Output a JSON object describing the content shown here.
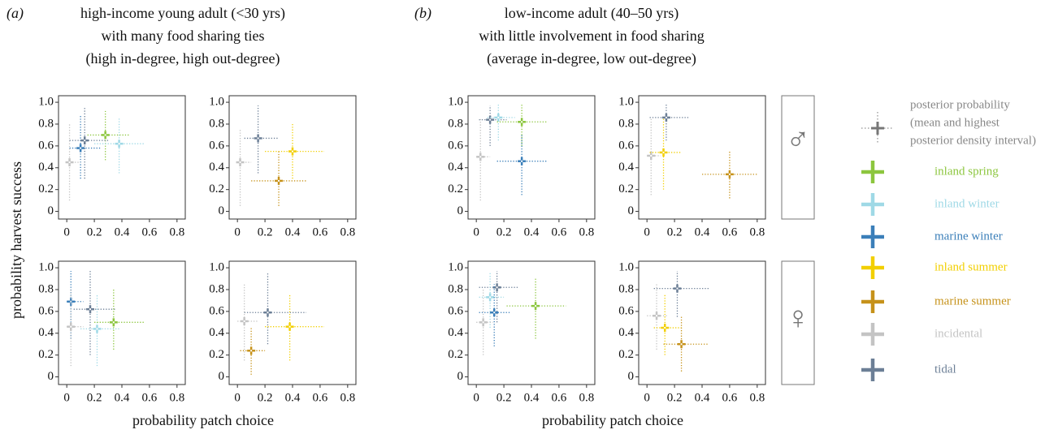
{
  "figure": {
    "panels": [
      {
        "label": "(a)",
        "title": [
          "high-income young adult (<30 yrs)",
          "with many food sharing ties",
          "(high in-degree, high out-degree)"
        ],
        "x_label": "probability patch choice"
      },
      {
        "label": "(b)",
        "title": [
          "low-income adult (40–50 yrs)",
          "with little involvement in food sharing",
          "(average in-degree, low out-degree)"
        ],
        "x_label": "probability patch choice"
      }
    ],
    "y_label": "probability harvest success",
    "sex_labels": [
      "♂",
      "♀"
    ],
    "legend": {
      "title": [
        "posterior probability",
        "(mean and highest",
        "posterior density interval)"
      ],
      "entries": [
        {
          "name": "inland spring",
          "color": "#8cc63e"
        },
        {
          "name": "inland winter",
          "color": "#9fd9e6"
        },
        {
          "name": "marine winter",
          "color": "#3b7fb9"
        },
        {
          "name": "inland summer",
          "color": "#f2cf00"
        },
        {
          "name": "marine summer",
          "color": "#c6921a"
        },
        {
          "name": "incidental",
          "color": "#c4c4c4"
        },
        {
          "name": "tidal",
          "color": "#6c7f96"
        }
      ]
    }
  },
  "chart_data": [
    {
      "type": "scatter",
      "xlim": [
        -0.06,
        0.86
      ],
      "ylim": [
        -0.07,
        1.06
      ],
      "xticks": [
        0,
        0.2,
        0.4,
        0.6,
        0.8
      ],
      "yticks": [
        0,
        0.2,
        0.4,
        0.6,
        0.8,
        {
          "value": 1,
          "label": "1.0"
        }
      ],
      "series": [
        {
          "color": "#8cc63e",
          "x": [
            0.28
          ],
          "values": [
            0.7
          ],
          "x_interval": [
            [
              0.15,
              0.45
            ]
          ],
          "y_interval": [
            [
              0.47,
              0.92
            ]
          ]
        },
        {
          "color": "#9fd9e6",
          "x": [
            0.38
          ],
          "values": [
            0.62
          ],
          "x_interval": [
            [
              0.2,
              0.56
            ]
          ],
          "y_interval": [
            [
              0.35,
              0.85
            ]
          ]
        },
        {
          "color": "#3b7fb9",
          "x": [
            0.1
          ],
          "values": [
            0.58
          ],
          "x_interval": [
            [
              0.02,
              0.25
            ]
          ],
          "y_interval": [
            [
              0.3,
              0.88
            ]
          ]
        },
        {
          "color": "#c4c4c4",
          "x": [
            0.02
          ],
          "values": [
            0.45
          ],
          "x_interval": [
            [
              0,
              0.1
            ]
          ],
          "y_interval": [
            [
              0.1,
              0.8
            ]
          ]
        },
        {
          "color": "#6c7f96",
          "x": [
            0.13
          ],
          "values": [
            0.65
          ],
          "x_interval": [
            [
              0.02,
              0.3
            ]
          ],
          "y_interval": [
            [
              0.3,
              0.95
            ]
          ]
        }
      ]
    },
    {
      "type": "scatter",
      "xlim": [
        -0.06,
        0.86
      ],
      "ylim": [
        -0.07,
        1.06
      ],
      "xticks": [
        0,
        0.2,
        0.4,
        0.6,
        0.8
      ],
      "yticks": [
        0,
        0.2,
        0.4,
        0.6,
        0.8,
        {
          "value": 1,
          "label": "1.0"
        }
      ],
      "series": [
        {
          "color": "#6c7f96",
          "x": [
            0.15
          ],
          "values": [
            0.67
          ],
          "x_interval": [
            [
              0.05,
              0.3
            ]
          ],
          "y_interval": [
            [
              0.35,
              0.97
            ]
          ]
        },
        {
          "color": "#c4c4c4",
          "x": [
            0.02
          ],
          "values": [
            0.45
          ],
          "x_interval": [
            [
              0,
              0.1
            ]
          ],
          "y_interval": [
            [
              0.05,
              0.75
            ]
          ]
        },
        {
          "color": "#f2cf00",
          "x": [
            0.4
          ],
          "values": [
            0.55
          ],
          "x_interval": [
            [
              0.2,
              0.63
            ]
          ],
          "y_interval": [
            [
              0.3,
              0.8
            ]
          ]
        },
        {
          "color": "#c6921a",
          "x": [
            0.3
          ],
          "values": [
            0.28
          ],
          "x_interval": [
            [
              0.1,
              0.5
            ]
          ],
          "y_interval": [
            [
              0.05,
              0.55
            ]
          ]
        }
      ]
    },
    {
      "type": "scatter",
      "xlim": [
        -0.06,
        0.86
      ],
      "ylim": [
        -0.07,
        1.06
      ],
      "xticks": [
        0,
        0.2,
        0.4,
        0.6,
        0.8
      ],
      "yticks": [
        0,
        0.2,
        0.4,
        0.6,
        0.8,
        {
          "value": 1,
          "label": "1.0"
        }
      ],
      "series": [
        {
          "color": "#3b7fb9",
          "x": [
            0.03
          ],
          "values": [
            0.69
          ],
          "x_interval": [
            [
              0,
              0.12
            ]
          ],
          "y_interval": [
            [
              0.35,
              0.97
            ]
          ]
        },
        {
          "color": "#6c7f96",
          "x": [
            0.17
          ],
          "values": [
            0.62
          ],
          "x_interval": [
            [
              0.05,
              0.35
            ]
          ],
          "y_interval": [
            [
              0.2,
              0.97
            ]
          ]
        },
        {
          "color": "#c4c4c4",
          "x": [
            0.03
          ],
          "values": [
            0.46
          ],
          "x_interval": [
            [
              0,
              0.12
            ]
          ],
          "y_interval": [
            [
              0.1,
              0.8
            ]
          ]
        },
        {
          "color": "#9fd9e6",
          "x": [
            0.22
          ],
          "values": [
            0.44
          ],
          "x_interval": [
            [
              0.1,
              0.38
            ]
          ],
          "y_interval": [
            [
              0.1,
              0.75
            ]
          ]
        },
        {
          "color": "#8cc63e",
          "x": [
            0.34
          ],
          "values": [
            0.5
          ],
          "x_interval": [
            [
              0.2,
              0.56
            ]
          ],
          "y_interval": [
            [
              0.25,
              0.8
            ]
          ]
        }
      ]
    },
    {
      "type": "scatter",
      "xlim": [
        -0.06,
        0.86
      ],
      "ylim": [
        -0.07,
        1.06
      ],
      "xticks": [
        0,
        0.2,
        0.4,
        0.6,
        0.8
      ],
      "yticks": [
        0,
        0.2,
        0.4,
        0.6,
        0.8,
        {
          "value": 1,
          "label": "1.0"
        }
      ],
      "series": [
        {
          "color": "#6c7f96",
          "x": [
            0.22
          ],
          "values": [
            0.59
          ],
          "x_interval": [
            [
              0.05,
              0.5
            ]
          ],
          "y_interval": [
            [
              0.3,
              0.95
            ]
          ]
        },
        {
          "color": "#c4c4c4",
          "x": [
            0.05
          ],
          "values": [
            0.51
          ],
          "x_interval": [
            [
              0,
              0.15
            ]
          ],
          "y_interval": [
            [
              0.15,
              0.85
            ]
          ]
        },
        {
          "color": "#f2cf00",
          "x": [
            0.38
          ],
          "values": [
            0.46
          ],
          "x_interval": [
            [
              0.2,
              0.63
            ]
          ],
          "y_interval": [
            [
              0.15,
              0.75
            ]
          ]
        },
        {
          "color": "#c6921a",
          "x": [
            0.1
          ],
          "values": [
            0.24
          ],
          "x_interval": [
            [
              0.02,
              0.2
            ]
          ],
          "y_interval": [
            [
              0.02,
              0.45
            ]
          ]
        }
      ]
    },
    {
      "type": "scatter",
      "xlim": [
        -0.06,
        0.86
      ],
      "ylim": [
        -0.07,
        1.06
      ],
      "xticks": [
        0,
        0.2,
        0.4,
        0.6,
        0.8
      ],
      "yticks": [
        0,
        0.2,
        0.4,
        0.6,
        0.8,
        {
          "value": 1,
          "label": "1.0"
        }
      ],
      "series": [
        {
          "color": "#6c7f96",
          "x": [
            0.1
          ],
          "values": [
            0.84
          ],
          "x_interval": [
            [
              0.02,
              0.22
            ]
          ],
          "y_interval": [
            [
              0.6,
              0.97
            ]
          ]
        },
        {
          "color": "#9fd9e6",
          "x": [
            0.16
          ],
          "values": [
            0.86
          ],
          "x_interval": [
            [
              0.08,
              0.28
            ]
          ],
          "y_interval": [
            [
              0.65,
              0.98
            ]
          ]
        },
        {
          "color": "#8cc63e",
          "x": [
            0.33
          ],
          "values": [
            0.82
          ],
          "x_interval": [
            [
              0.15,
              0.52
            ]
          ],
          "y_interval": [
            [
              0.6,
              0.98
            ]
          ]
        },
        {
          "color": "#3b7fb9",
          "x": [
            0.33
          ],
          "values": [
            0.46
          ],
          "x_interval": [
            [
              0.15,
              0.52
            ]
          ],
          "y_interval": [
            [
              0.15,
              0.7
            ]
          ]
        },
        {
          "color": "#c4c4c4",
          "x": [
            0.03
          ],
          "values": [
            0.5
          ],
          "x_interval": [
            [
              0,
              0.1
            ]
          ],
          "y_interval": [
            [
              0.1,
              0.85
            ]
          ]
        }
      ]
    },
    {
      "type": "scatter",
      "xlim": [
        -0.06,
        0.86
      ],
      "ylim": [
        -0.07,
        1.06
      ],
      "xticks": [
        0,
        0.2,
        0.4,
        0.6,
        0.8
      ],
      "yticks": [
        0,
        0.2,
        0.4,
        0.6,
        0.8,
        {
          "value": 1,
          "label": "1.0"
        }
      ],
      "series": [
        {
          "color": "#6c7f96",
          "x": [
            0.14
          ],
          "values": [
            0.86
          ],
          "x_interval": [
            [
              0.02,
              0.3
            ]
          ],
          "y_interval": [
            [
              0.65,
              0.98
            ]
          ]
        },
        {
          "color": "#c4c4c4",
          "x": [
            0.03
          ],
          "values": [
            0.51
          ],
          "x_interval": [
            [
              0,
              0.1
            ]
          ],
          "y_interval": [
            [
              0.15,
              0.85
            ]
          ]
        },
        {
          "color": "#f2cf00",
          "x": [
            0.12
          ],
          "values": [
            0.54
          ],
          "x_interval": [
            [
              0.02,
              0.25
            ]
          ],
          "y_interval": [
            [
              0.2,
              0.85
            ]
          ]
        },
        {
          "color": "#c6921a",
          "x": [
            0.6
          ],
          "values": [
            0.34
          ],
          "x_interval": [
            [
              0.4,
              0.8
            ]
          ],
          "y_interval": [
            [
              0.12,
              0.55
            ]
          ]
        }
      ]
    },
    {
      "type": "scatter",
      "xlim": [
        -0.06,
        0.86
      ],
      "ylim": [
        -0.07,
        1.06
      ],
      "xticks": [
        0,
        0.2,
        0.4,
        0.6,
        0.8
      ],
      "yticks": [
        0,
        0.2,
        0.4,
        0.6,
        0.8,
        {
          "value": 1,
          "label": "1.0"
        }
      ],
      "series": [
        {
          "color": "#6c7f96",
          "x": [
            0.15
          ],
          "values": [
            0.82
          ],
          "x_interval": [
            [
              0.02,
              0.3
            ]
          ],
          "y_interval": [
            [
              0.5,
              0.97
            ]
          ]
        },
        {
          "color": "#9fd9e6",
          "x": [
            0.1
          ],
          "values": [
            0.73
          ],
          "x_interval": [
            [
              0.02,
              0.2
            ]
          ],
          "y_interval": [
            [
              0.45,
              0.95
            ]
          ]
        },
        {
          "color": "#3b7fb9",
          "x": [
            0.13
          ],
          "values": [
            0.59
          ],
          "x_interval": [
            [
              0.02,
              0.25
            ]
          ],
          "y_interval": [
            [
              0.28,
              0.85
            ]
          ]
        },
        {
          "color": "#c4c4c4",
          "x": [
            0.05
          ],
          "values": [
            0.5
          ],
          "x_interval": [
            [
              0,
              0.12
            ]
          ],
          "y_interval": [
            [
              0.2,
              0.8
            ]
          ]
        },
        {
          "color": "#8cc63e",
          "x": [
            0.43
          ],
          "values": [
            0.65
          ],
          "x_interval": [
            [
              0.22,
              0.65
            ]
          ],
          "y_interval": [
            [
              0.35,
              0.9
            ]
          ]
        }
      ]
    },
    {
      "type": "scatter",
      "xlim": [
        -0.06,
        0.86
      ],
      "ylim": [
        -0.07,
        1.06
      ],
      "xticks": [
        0,
        0.2,
        0.4,
        0.6,
        0.8
      ],
      "yticks": [
        0,
        0.2,
        0.4,
        0.6,
        0.8,
        {
          "value": 1,
          "label": "1.0"
        }
      ],
      "series": [
        {
          "color": "#6c7f96",
          "x": [
            0.22
          ],
          "values": [
            0.81
          ],
          "x_interval": [
            [
              0.05,
              0.45
            ]
          ],
          "y_interval": [
            [
              0.55,
              0.97
            ]
          ]
        },
        {
          "color": "#c4c4c4",
          "x": [
            0.07
          ],
          "values": [
            0.56
          ],
          "x_interval": [
            [
              0,
              0.15
            ]
          ],
          "y_interval": [
            [
              0.25,
              0.85
            ]
          ]
        },
        {
          "color": "#f2cf00",
          "x": [
            0.13
          ],
          "values": [
            0.45
          ],
          "x_interval": [
            [
              0.05,
              0.25
            ]
          ],
          "y_interval": [
            [
              0.2,
              0.75
            ]
          ]
        },
        {
          "color": "#c6921a",
          "x": [
            0.25
          ],
          "values": [
            0.3
          ],
          "x_interval": [
            [
              0.12,
              0.45
            ]
          ],
          "y_interval": [
            [
              0.05,
              0.55
            ]
          ]
        }
      ]
    }
  ]
}
